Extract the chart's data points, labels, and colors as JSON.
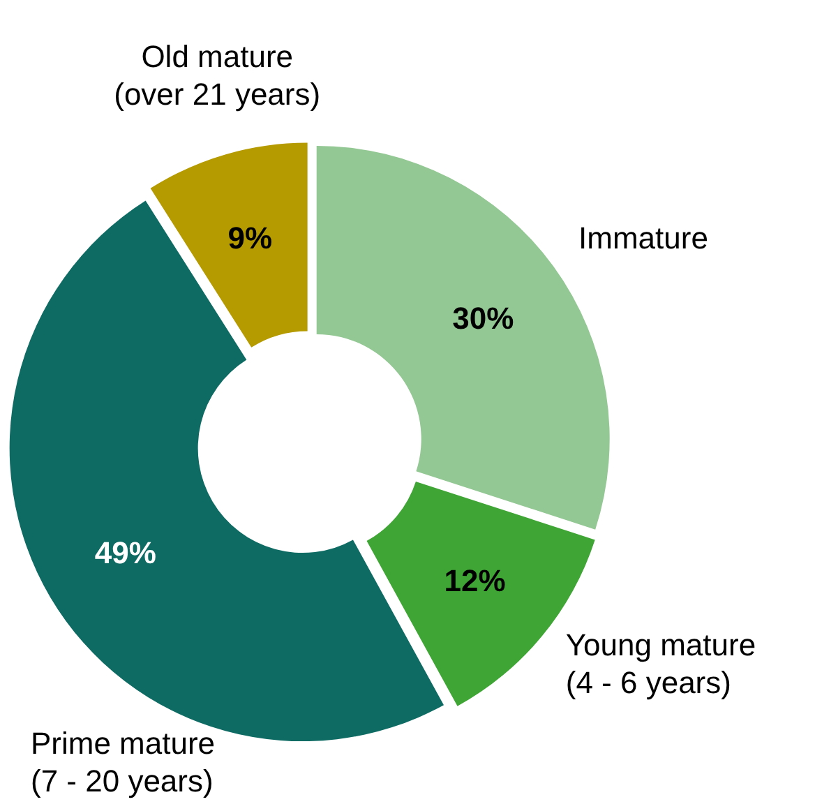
{
  "chart_data": {
    "type": "donut",
    "categories": [
      "Immature",
      "Young mature (4 - 6 years)",
      "Prime mature (7 - 20 years)",
      "Old mature (over 21 years)"
    ],
    "values": [
      30,
      12,
      49,
      9
    ],
    "colors": [
      "#93c793",
      "#3fa535",
      "#0e6b63",
      "#b59a00"
    ],
    "value_labels": [
      "30%",
      "12%",
      "49%",
      "9%"
    ]
  }
}
